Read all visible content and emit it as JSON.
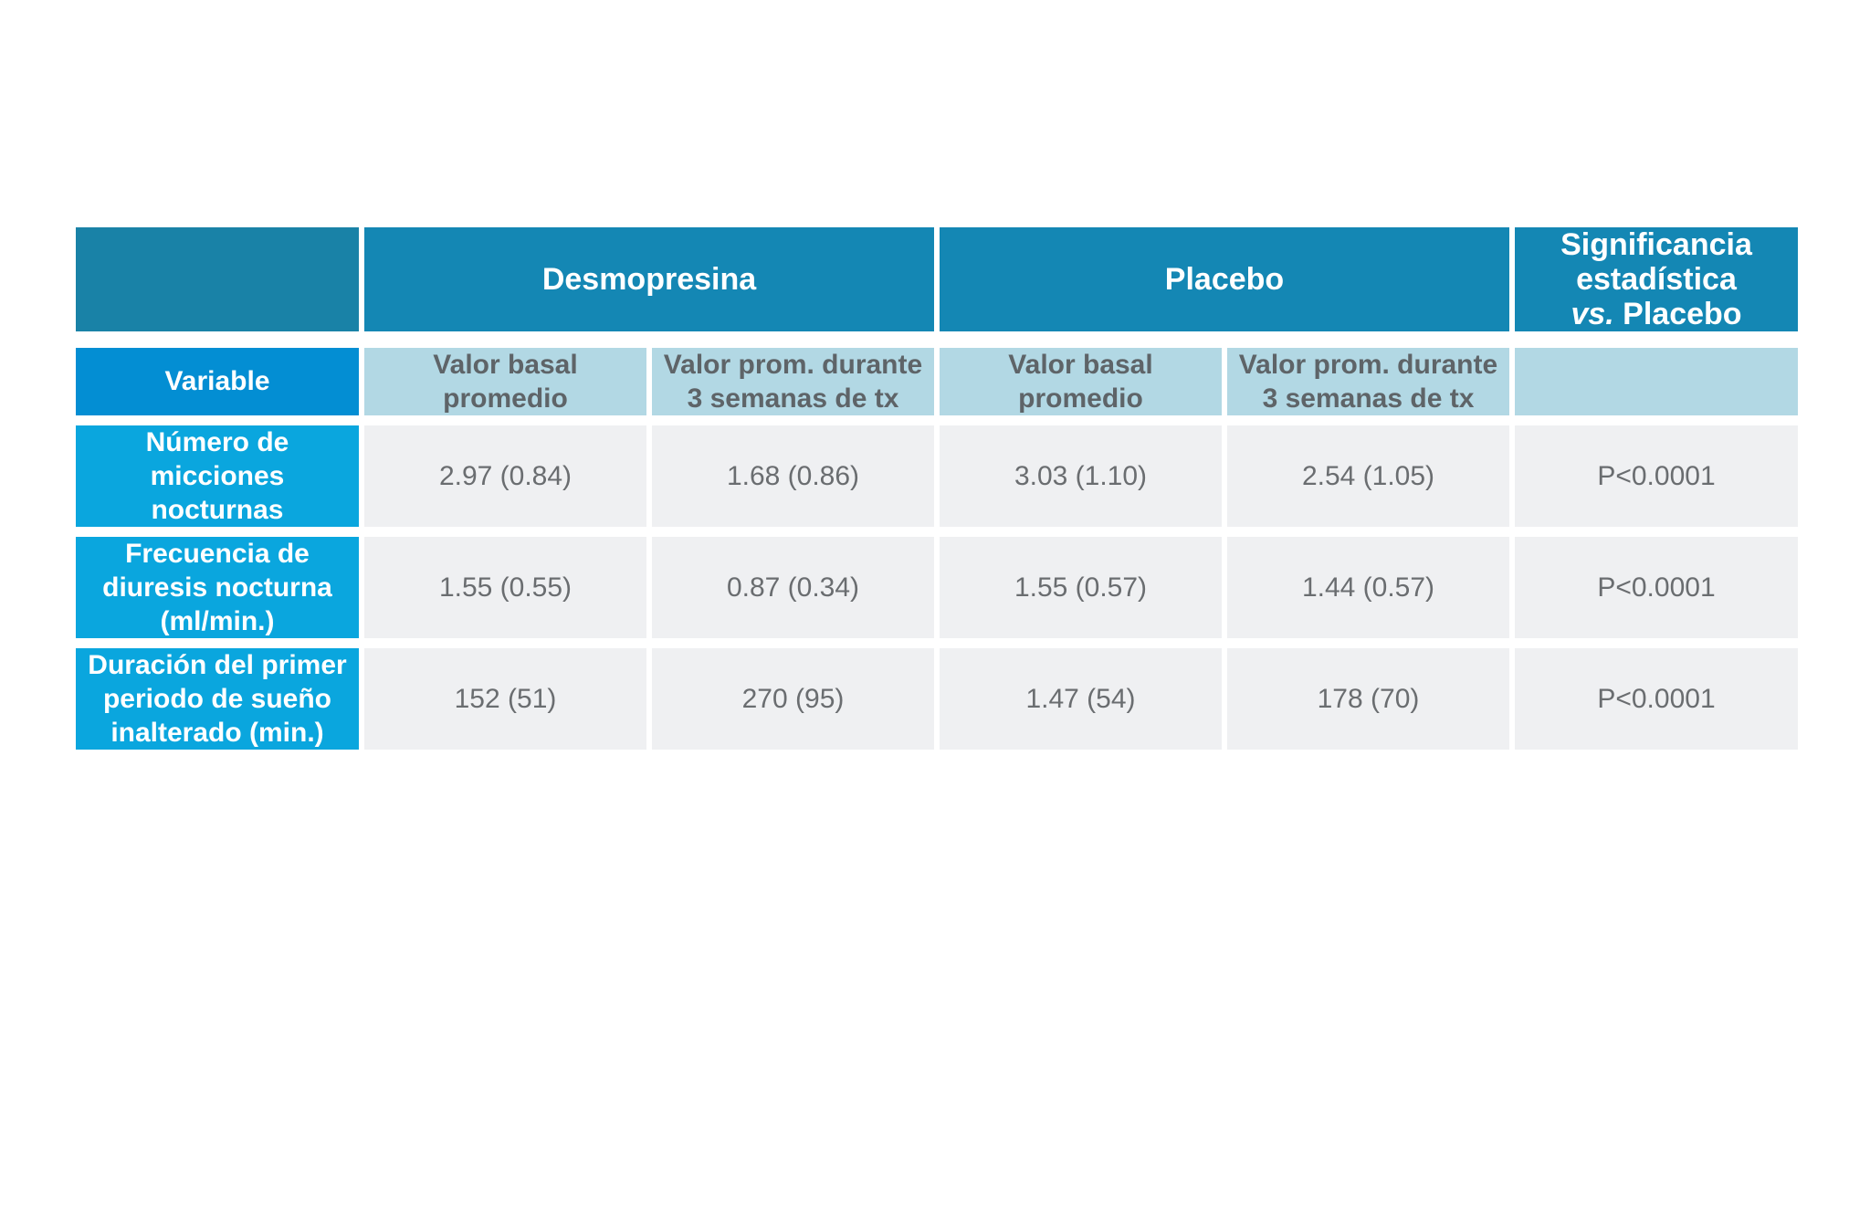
{
  "table": {
    "header_groups": {
      "desmopresina": "Desmopresina",
      "placebo": "Placebo",
      "significance_line1": "Significancia",
      "significance_line2": "estadística",
      "significance_vs": "vs.",
      "significance_placebo": "Placebo"
    },
    "subheaders": {
      "variable": "Variable",
      "col1": "Valor basal\npromedio",
      "col2": "Valor prom. durante\n3 semanas de tx",
      "col3": "Valor basal\npromedio",
      "col4": "Valor prom. durante\n3 semanas de tx",
      "col5": ""
    },
    "rows": [
      {
        "label": "Número de\nmicciones\nnocturnas",
        "values": [
          "2.97 (0.84)",
          "1.68 (0.86)",
          "3.03 (1.10)",
          "2.54 (1.05)",
          "P<0.0001"
        ]
      },
      {
        "label": "Frecuencia de\ndiuresis nocturna\n(ml/min.)",
        "values": [
          "1.55 (0.55)",
          "0.87 (0.34)",
          "1.55 (0.57)",
          "1.44 (0.57)",
          "P<0.0001"
        ]
      },
      {
        "label": "Duración del primer\nperiodo de sueño\ninalterado (min.)",
        "values": [
          "152 (51)",
          "270 (95)",
          "1.47 (54)",
          "178 (70)",
          "P<0.0001"
        ]
      }
    ],
    "colors": {
      "top_header": "#1487b4",
      "variable_header": "#038ed3",
      "row_label": "#0aa6de",
      "subheader": "#b2d8e4",
      "value_cell": "#eff0f2"
    }
  }
}
